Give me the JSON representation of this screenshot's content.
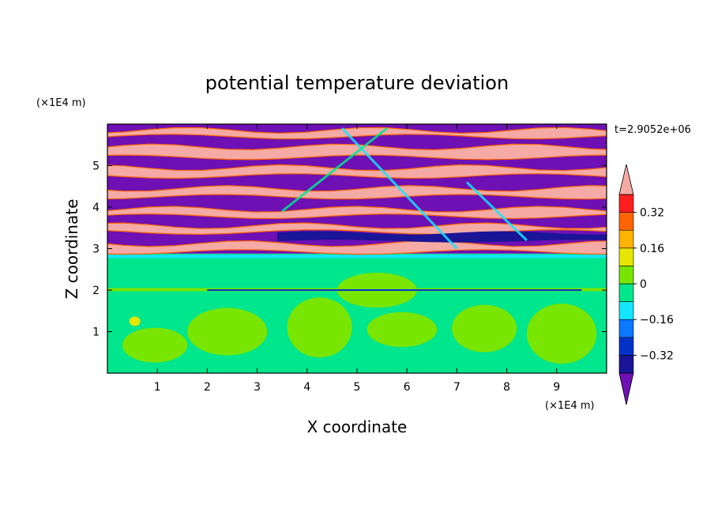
{
  "chart_data": {
    "type": "heatmap",
    "title": "potential temperature deviation",
    "xlabel": "X coordinate",
    "ylabel": "Z coordinate",
    "x_unit": "(×1E4 m)",
    "y_unit": "(×1E4 m)",
    "time_label": "t=2.9052e+06",
    "xlim": [
      0,
      10
    ],
    "ylim": [
      0,
      6
    ],
    "x_ticks": [
      1,
      2,
      3,
      4,
      5,
      6,
      7,
      8,
      9
    ],
    "y_ticks": [
      1,
      2,
      3,
      4,
      5
    ],
    "x_tick_labels": [
      "1",
      "2",
      "3",
      "4",
      "5",
      "6",
      "7",
      "8",
      "9"
    ],
    "y_tick_labels": [
      "1",
      "2",
      "3",
      "4",
      "5"
    ],
    "colorbar": {
      "levels": [
        -0.4,
        -0.32,
        -0.24,
        -0.16,
        -0.08,
        0,
        0.08,
        0.16,
        0.24,
        0.32,
        0.4
      ],
      "tick_values": [
        -0.32,
        -0.16,
        0,
        0.16,
        0.32
      ],
      "tick_labels": [
        "−0.32",
        "−0.16",
        "0",
        "0.16",
        "0.32"
      ],
      "colors": [
        "#1a1496",
        "#0032c8",
        "#0a78ff",
        "#14e6ff",
        "#00e68c",
        "#78e600",
        "#e6e600",
        "#ffb400",
        "#ff6400",
        "#ff1e1e"
      ],
      "under_color": "#6e10b4",
      "over_color": "#f5aaa5"
    },
    "upper_layer_colors": {
      "warm": "#f5aaa5",
      "cold": "#6e10b4",
      "deep": "#1a1496"
    },
    "lower_layer_colors": {
      "base": "#00e68c",
      "patch": "#78e600",
      "hot": "#e6e600"
    }
  }
}
